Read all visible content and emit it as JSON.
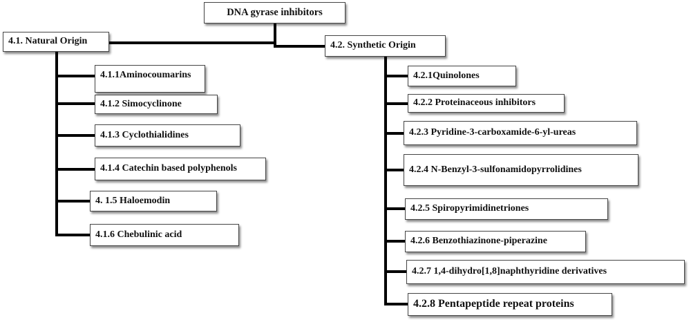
{
  "root": {
    "label": "DNA gyrase inhibitors"
  },
  "natural": {
    "label": "4.1. Natural Origin",
    "items": [
      "4.1.1Aminocoumarins",
      "4.1.2 Simocyclinone",
      "4.1.3 Cyclothialidines",
      "4.1.4 Catechin based polyphenols",
      "4. 1.5 Haloemodin",
      "4.1.6 Chebulinic acid"
    ]
  },
  "synthetic": {
    "label": "4.2. Synthetic Origin",
    "items": [
      "4.2.1Quinolones",
      "4.2.2 Proteinaceous inhibitors",
      "4.2.3 Pyridine-3-carboxamide-6-yl-ureas",
      "4.2.4 N-Benzyl-3-sulfonamidopyrrolidines",
      "4.2.5 Spiropyrimidinetriones",
      "4.2.6 Benzothiazinone-piperazine",
      "4.2.7  1,4-dihydro[1,8]naphthyridine derivatives",
      "4.2.8 Pentapeptide repeat proteins"
    ]
  }
}
